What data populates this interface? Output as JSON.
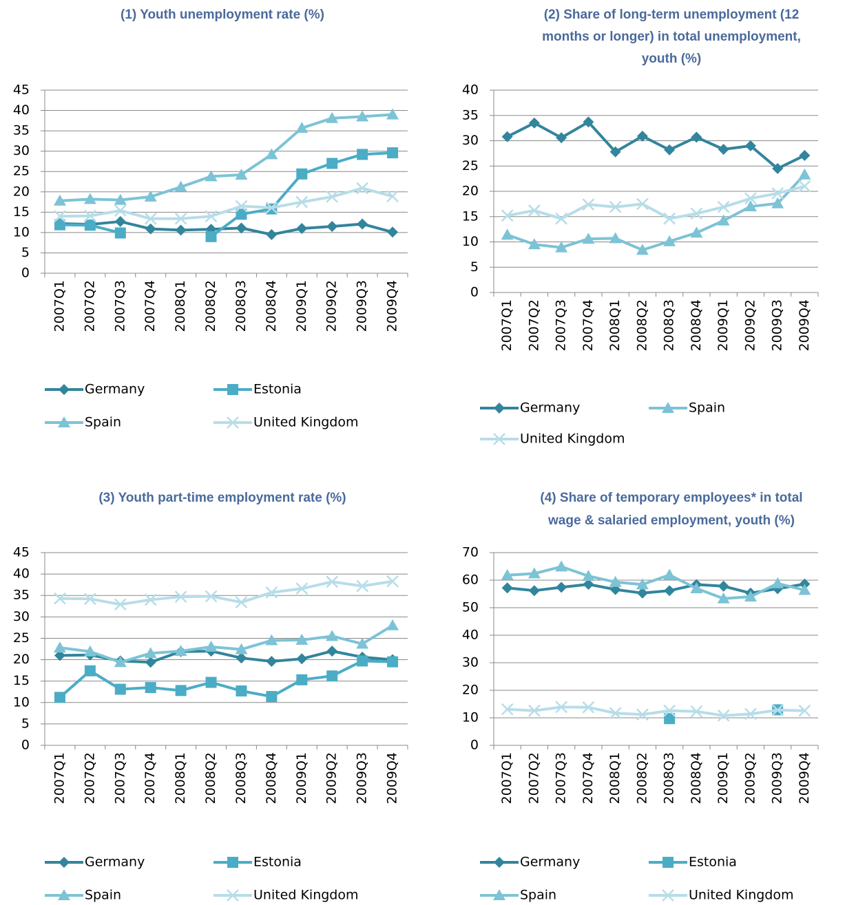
{
  "chart_data": [
    {
      "type": "line",
      "title": [
        "(1)   Youth unemployment rate (%)"
      ],
      "categories": [
        "2007Q1",
        "2007Q2",
        "2007Q3",
        "2007Q4",
        "2008Q1",
        "2008Q2",
        "2008Q3",
        "2008Q4",
        "2009Q1",
        "2009Q2",
        "2009Q3",
        "2009Q4"
      ],
      "series": [
        {
          "name": "Germany",
          "color": "#31859c",
          "marker": "diamond",
          "values": [
            12.2,
            12.0,
            12.7,
            10.9,
            10.6,
            10.8,
            11.1,
            9.5,
            11.0,
            11.5,
            12.1,
            10.1
          ]
        },
        {
          "name": "Estonia",
          "color": "#4bacc6",
          "marker": "square",
          "values": [
            11.9,
            11.8,
            9.9,
            null,
            null,
            9.0,
            14.5,
            15.8,
            24.4,
            27.0,
            29.2,
            29.6
          ]
        },
        {
          "name": "Spain",
          "color": "#7cc3d6",
          "marker": "triangle",
          "values": [
            17.8,
            18.2,
            18.0,
            18.8,
            21.2,
            23.8,
            24.2,
            29.2,
            35.7,
            38.1,
            38.5,
            39.0
          ]
        },
        {
          "name": "United Kingdom",
          "color": "#b7dde8",
          "marker": "x",
          "values": [
            14.0,
            14.1,
            15.4,
            13.4,
            13.4,
            14.0,
            16.5,
            16.1,
            17.5,
            18.8,
            20.9,
            18.9
          ]
        }
      ],
      "ylim": [
        0,
        45
      ],
      "yticks": [
        0,
        5,
        10,
        15,
        20,
        25,
        30,
        35,
        40,
        45
      ],
      "grid": true
    },
    {
      "type": "line",
      "title": [
        "(2)   Share of long-term unemployment (12",
        "months or longer) in total unemployment,",
        "youth (%)"
      ],
      "categories": [
        "2007Q1",
        "2007Q2",
        "2007Q3",
        "2007Q4",
        "2008Q1",
        "2008Q2",
        "2008Q3",
        "2008Q4",
        "2009Q1",
        "2009Q2",
        "2009Q3",
        "2009Q4"
      ],
      "series": [
        {
          "name": "Germany",
          "color": "#31859c",
          "marker": "diamond",
          "values": [
            30.8,
            33.5,
            30.6,
            33.7,
            27.8,
            30.9,
            28.2,
            30.7,
            28.3,
            29.0,
            24.5,
            27.1
          ]
        },
        {
          "name": "Spain",
          "color": "#7cc3d6",
          "marker": "triangle",
          "values": [
            11.4,
            9.5,
            8.9,
            10.6,
            10.7,
            8.4,
            10.1,
            11.8,
            14.2,
            17.0,
            17.6,
            23.3
          ]
        },
        {
          "name": "United Kingdom",
          "color": "#b7dde8",
          "marker": "x",
          "values": [
            15.2,
            16.2,
            14.6,
            17.4,
            16.9,
            17.5,
            14.6,
            15.6,
            16.9,
            18.6,
            19.6,
            21.0
          ]
        }
      ],
      "ylim": [
        0,
        40
      ],
      "yticks": [
        0,
        5,
        10,
        15,
        20,
        25,
        30,
        35,
        40
      ],
      "grid": true
    },
    {
      "type": "line",
      "title": [
        "(3)   Youth part-time employment rate (%)"
      ],
      "categories": [
        "2007Q1",
        "2007Q2",
        "2007Q3",
        "2007Q4",
        "2008Q1",
        "2008Q2",
        "2008Q3",
        "2008Q4",
        "2009Q1",
        "2009Q2",
        "2009Q3",
        "2009Q4"
      ],
      "series": [
        {
          "name": "Germany",
          "color": "#31859c",
          "marker": "diamond",
          "values": [
            21.0,
            21.1,
            19.7,
            19.4,
            21.9,
            22.0,
            20.4,
            19.6,
            20.2,
            22.0,
            20.6,
            20.0
          ]
        },
        {
          "name": "Estonia",
          "color": "#4bacc6",
          "marker": "square",
          "values": [
            11.2,
            17.4,
            13.1,
            13.5,
            12.8,
            14.7,
            12.7,
            11.4,
            15.3,
            16.2,
            19.7,
            19.5
          ]
        },
        {
          "name": "Spain",
          "color": "#7cc3d6",
          "marker": "triangle",
          "values": [
            22.8,
            21.9,
            19.4,
            21.5,
            22.0,
            23.0,
            22.4,
            24.5,
            24.6,
            25.5,
            23.7,
            28.0
          ]
        },
        {
          "name": "United Kingdom",
          "color": "#b7dde8",
          "marker": "x",
          "values": [
            34.3,
            34.2,
            32.9,
            34.0,
            34.7,
            34.8,
            33.4,
            35.7,
            36.6,
            38.2,
            37.2,
            38.3
          ]
        }
      ],
      "ylim": [
        0,
        45
      ],
      "yticks": [
        0,
        5,
        10,
        15,
        20,
        25,
        30,
        35,
        40,
        45
      ],
      "grid": true
    },
    {
      "type": "line",
      "title": [
        "(4)   Share of temporary employees* in total",
        "wage & salaried employment, youth (%)"
      ],
      "categories": [
        "2007Q1",
        "2007Q2",
        "2007Q3",
        "2007Q4",
        "2008Q1",
        "2008Q2",
        "2008Q3",
        "2008Q4",
        "2009Q1",
        "2009Q2",
        "2009Q3",
        "2009Q4"
      ],
      "series": [
        {
          "name": "Germany",
          "color": "#31859c",
          "marker": "diamond",
          "values": [
            57.2,
            56.2,
            57.4,
            58.5,
            56.6,
            55.3,
            56.2,
            58.4,
            57.8,
            55.3,
            56.9,
            58.6
          ]
        },
        {
          "name": "Estonia",
          "color": "#4bacc6",
          "marker": "square",
          "values": [
            null,
            null,
            null,
            null,
            null,
            null,
            9.7,
            null,
            null,
            null,
            12.9,
            null
          ]
        },
        {
          "name": "Spain",
          "color": "#7cc3d6",
          "marker": "triangle",
          "values": [
            61.8,
            62.4,
            64.9,
            61.5,
            59.3,
            58.4,
            61.9,
            57.0,
            53.3,
            54.0,
            58.8,
            56.4
          ]
        },
        {
          "name": "United Kingdom",
          "color": "#b7dde8",
          "marker": "x",
          "values": [
            13.1,
            12.6,
            13.9,
            13.8,
            11.7,
            11.2,
            12.6,
            12.3,
            10.8,
            11.4,
            12.8,
            12.6
          ]
        }
      ],
      "ylim": [
        0,
        70
      ],
      "yticks": [
        0,
        10,
        20,
        30,
        40,
        50,
        60,
        70
      ],
      "grid": true
    }
  ]
}
